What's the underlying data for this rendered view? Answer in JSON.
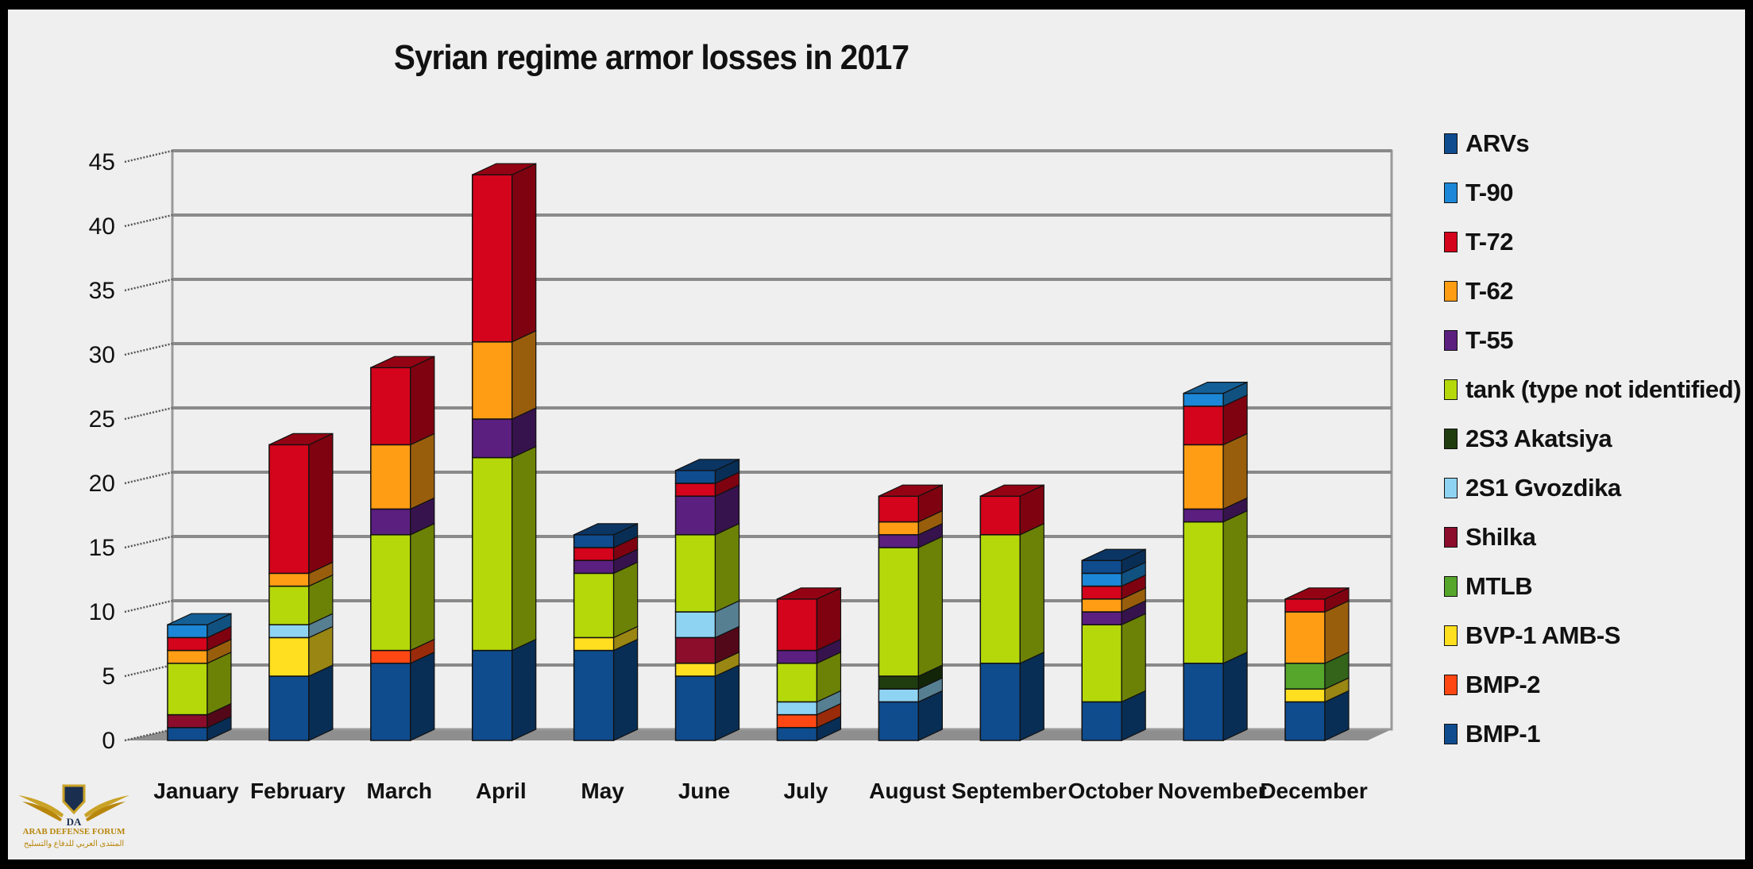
{
  "chart_data": {
    "type": "bar",
    "stacked": true,
    "title": "Syrian regime armor losses in 2017",
    "xlabel": "",
    "ylabel": "",
    "ylim": [
      0,
      45
    ],
    "yticks": [
      0,
      5,
      10,
      15,
      20,
      25,
      30,
      35,
      40,
      45
    ],
    "grid": true,
    "legend_position": "right",
    "categories": [
      "January",
      "February",
      "March",
      "April",
      "May",
      "June",
      "July",
      "August",
      "September",
      "October",
      "November",
      "December"
    ],
    "series": [
      {
        "name": "BMP-1",
        "color": "#0f4c8e",
        "values": [
          1,
          5,
          6,
          7,
          7,
          5,
          1,
          3,
          6,
          3,
          6,
          3
        ]
      },
      {
        "name": "BMP-2",
        "color": "#ff4713",
        "values": [
          0,
          0,
          1,
          0,
          0,
          0,
          1,
          0,
          0,
          0,
          0,
          0
        ]
      },
      {
        "name": "BVP-1 AMB-S",
        "color": "#ffdf1f",
        "values": [
          0,
          3,
          0,
          0,
          1,
          1,
          0,
          0,
          0,
          0,
          0,
          1
        ]
      },
      {
        "name": "MTLB",
        "color": "#55a62a",
        "values": [
          0,
          0,
          0,
          0,
          0,
          0,
          0,
          0,
          0,
          0,
          0,
          2
        ]
      },
      {
        "name": "Shilka",
        "color": "#8b0d2b",
        "values": [
          1,
          0,
          0,
          0,
          0,
          2,
          0,
          0,
          0,
          0,
          0,
          0
        ]
      },
      {
        "name": "2S1 Gvozdika",
        "color": "#8fd3f3",
        "values": [
          0,
          1,
          0,
          0,
          0,
          2,
          1,
          1,
          0,
          0,
          0,
          0
        ]
      },
      {
        "name": "2S3 Akatsiya",
        "color": "#1f3d0f",
        "values": [
          0,
          0,
          0,
          0,
          0,
          0,
          0,
          1,
          0,
          0,
          0,
          0
        ]
      },
      {
        "name": "tank (type not identified)",
        "color": "#b4d80a",
        "values": [
          4,
          3,
          9,
          15,
          5,
          6,
          3,
          10,
          10,
          6,
          11,
          0
        ]
      },
      {
        "name": "T-55",
        "color": "#5b1f80",
        "values": [
          0,
          0,
          2,
          3,
          1,
          3,
          1,
          1,
          0,
          1,
          1,
          0
        ]
      },
      {
        "name": "T-62",
        "color": "#ff9d14",
        "values": [
          1,
          1,
          5,
          6,
          0,
          0,
          0,
          1,
          0,
          1,
          5,
          4
        ]
      },
      {
        "name": "T-72",
        "color": "#d3041b",
        "values": [
          1,
          10,
          6,
          13,
          1,
          1,
          4,
          2,
          3,
          1,
          3,
          1
        ]
      },
      {
        "name": "T-90",
        "color": "#1c87d6",
        "values": [
          1,
          0,
          0,
          0,
          0,
          0,
          0,
          0,
          0,
          1,
          1,
          0
        ]
      },
      {
        "name": "ARVs",
        "color": "#0f4c8e",
        "values": [
          0,
          0,
          0,
          0,
          1,
          1,
          0,
          0,
          0,
          1,
          0,
          0
        ]
      }
    ]
  },
  "legend": [
    {
      "label": "ARVs",
      "color": "#0f4c8e"
    },
    {
      "label": "T-90",
      "color": "#1c87d6"
    },
    {
      "label": "T-72",
      "color": "#d3041b"
    },
    {
      "label": "T-62",
      "color": "#ff9d14"
    },
    {
      "label": "T-55",
      "color": "#5b1f80"
    },
    {
      "label": "tank (type not identified)",
      "color": "#b4d80a"
    },
    {
      "label": "2S3 Akatsiya",
      "color": "#1f3d0f"
    },
    {
      "label": "2S1 Gvozdika",
      "color": "#8fd3f3"
    },
    {
      "label": "Shilka",
      "color": "#8b0d2b"
    },
    {
      "label": "MTLB",
      "color": "#55a62a"
    },
    {
      "label": "BVP-1 AMB-S",
      "color": "#ffdf1f"
    },
    {
      "label": "BMP-2",
      "color": "#ff4713"
    },
    {
      "label": "BMP-1",
      "color": "#0f4c8e"
    }
  ],
  "watermark": {
    "logo_text": "DA",
    "line1": "ARAB DEFENSE FORUM",
    "line2": "المنتدى العربي للدفاع والتسليح"
  }
}
